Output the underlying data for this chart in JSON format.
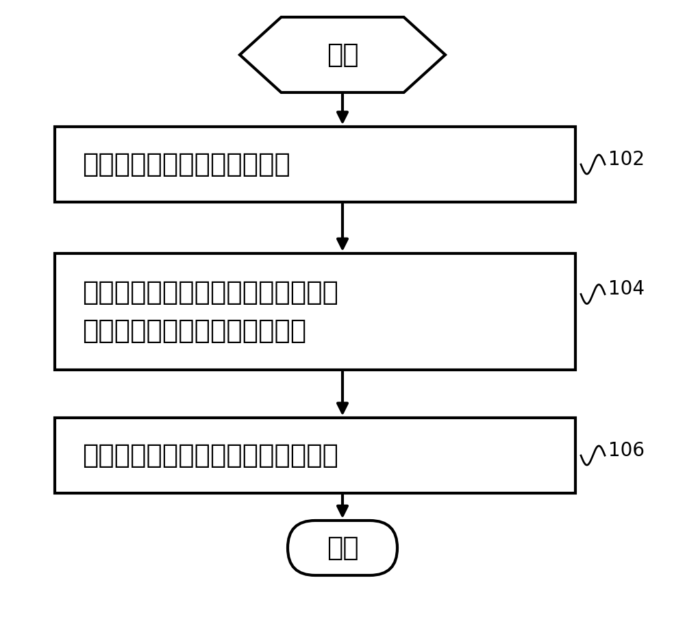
{
  "bg_color": "#ffffff",
  "line_color": "#000000",
  "text_color": "#000000",
  "font_size_main": 28,
  "font_size_label": 20,
  "start_end_text": [
    "开始",
    "结束"
  ],
  "box_texts": [
    "获取摄像模组的当前工作模式",
    "根据第一预设对应关系，确定当前工\n作模式对应的第一目标防抖参数",
    "根据第一目标防抖参数配置摄像模组"
  ],
  "labels": [
    "102",
    "104",
    "106"
  ],
  "figsize": [
    10.0,
    9.14
  ],
  "dpi": 100
}
